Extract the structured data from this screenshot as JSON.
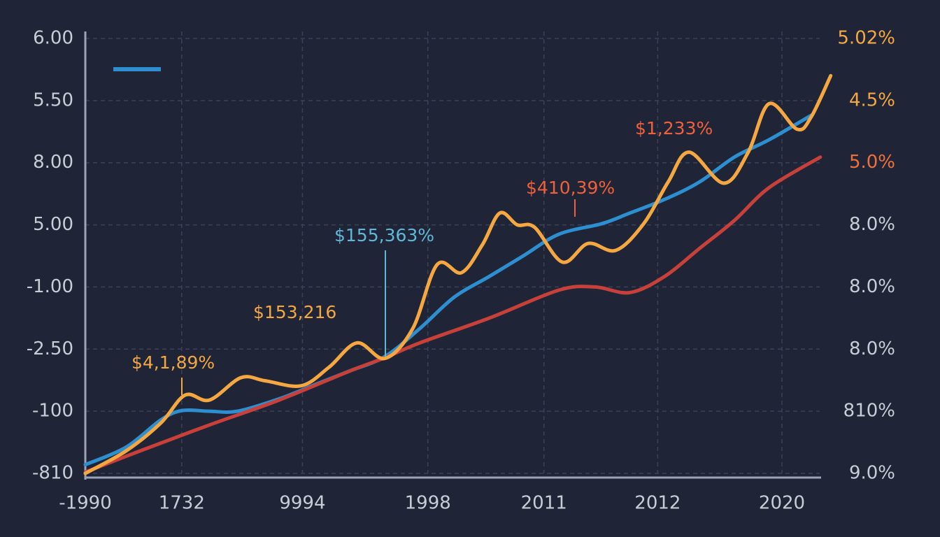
{
  "chart_data": {
    "type": "line",
    "x": [
      0,
      1
    ],
    "xlim": [
      0,
      6.45
    ],
    "xticks": [
      {
        "value": 0,
        "label": "-1990"
      },
      {
        "value": 0.83,
        "label": "1732"
      },
      {
        "value": 1.87,
        "label": "9994"
      },
      {
        "value": 2.95,
        "label": "1998"
      },
      {
        "value": 3.95,
        "label": "2011"
      },
      {
        "value": 4.93,
        "label": "2012"
      },
      {
        "value": 6.0,
        "label": "2020"
      }
    ],
    "ylim": [
      0,
      7
    ],
    "yticks": [
      {
        "value": 7,
        "label": "6.00"
      },
      {
        "value": 6,
        "label": "5.50"
      },
      {
        "value": 5,
        "label": "8.00"
      },
      {
        "value": 4,
        "label": "5.00"
      },
      {
        "value": 3,
        "label": "-1.00"
      },
      {
        "value": 2,
        "label": "-2.50"
      },
      {
        "value": 1,
        "label": "-100"
      },
      {
        "value": 0,
        "label": "-810"
      }
    ],
    "y2lim": [
      0,
      7
    ],
    "y2ticks": [
      {
        "value": 7,
        "label": "5.02%"
      },
      {
        "value": 6,
        "label": "4.5%"
      },
      {
        "value": 5,
        "label": "5.0%"
      },
      {
        "value": 4,
        "label": "8.0%"
      },
      {
        "value": 3,
        "label": "8.0%"
      },
      {
        "value": 2,
        "label": "8.0%"
      },
      {
        "value": 1,
        "label": "810%"
      },
      {
        "value": 0,
        "label": "9.0%"
      }
    ],
    "y2tick_colors": [
      "#f5a742",
      "#f5a742",
      "#f0703a",
      "#c8ccd6",
      "#c8ccd6",
      "#c8ccd6",
      "#c8ccd6",
      "#c8ccd6"
    ],
    "grid": true,
    "series": [
      {
        "color": "#2e8fd0",
        "x": [
          0,
          0.35,
          0.65,
          0.83,
          1.07,
          1.31,
          1.67,
          1.98,
          2.28,
          2.58,
          2.88,
          3.18,
          3.48,
          3.78,
          4.08,
          4.45,
          4.69,
          4.99,
          5.29,
          5.59,
          5.89,
          6.25
        ],
        "values": [
          0.14,
          0.42,
          0.86,
          1.01,
          1.0,
          1.0,
          1.2,
          1.43,
          1.65,
          1.88,
          2.33,
          2.84,
          3.17,
          3.51,
          3.85,
          4.02,
          4.19,
          4.41,
          4.69,
          5.09,
          5.37,
          5.76
        ]
      },
      {
        "color": "#c8403a",
        "x": [
          0,
          0.47,
          1.07,
          1.67,
          2.28,
          2.58,
          2.88,
          3.48,
          4.08,
          4.39,
          4.69,
          4.99,
          5.29,
          5.59,
          5.89,
          6.33
        ],
        "values": [
          0.02,
          0.36,
          0.78,
          1.18,
          1.65,
          1.86,
          2.1,
          2.5,
          2.95,
          3.0,
          2.91,
          3.17,
          3.62,
          4.07,
          4.6,
          5.09
        ]
      },
      {
        "color": "#f5a742",
        "x": [
          0,
          0.35,
          0.65,
          0.86,
          1.07,
          1.34,
          1.55,
          1.86,
          2.1,
          2.34,
          2.58,
          2.82,
          3.03,
          3.24,
          3.42,
          3.57,
          3.72,
          3.87,
          4.11,
          4.33,
          4.57,
          4.81,
          5.02,
          5.2,
          5.5,
          5.71,
          5.89,
          6.13,
          6.25,
          6.42
        ],
        "values": [
          0,
          0.36,
          0.81,
          1.26,
          1.18,
          1.54,
          1.49,
          1.41,
          1.71,
          2.1,
          1.85,
          2.33,
          3.36,
          3.23,
          3.68,
          4.19,
          4.0,
          3.96,
          3.4,
          3.7,
          3.59,
          4.02,
          4.69,
          5.17,
          4.67,
          5.17,
          5.95,
          5.54,
          5.73,
          6.4
        ]
      }
    ],
    "annotations": [
      {
        "text": "$4,1,89%",
        "color": "#f5a742"
      },
      {
        "text": "$153,216",
        "color": "#f5a742"
      },
      {
        "text": "$155,363%",
        "color": "#5fb8d8"
      },
      {
        "text": "$410,39%",
        "color": "#f0603a"
      },
      {
        "text": "$1,233%",
        "color": "#f0603a"
      }
    ]
  }
}
